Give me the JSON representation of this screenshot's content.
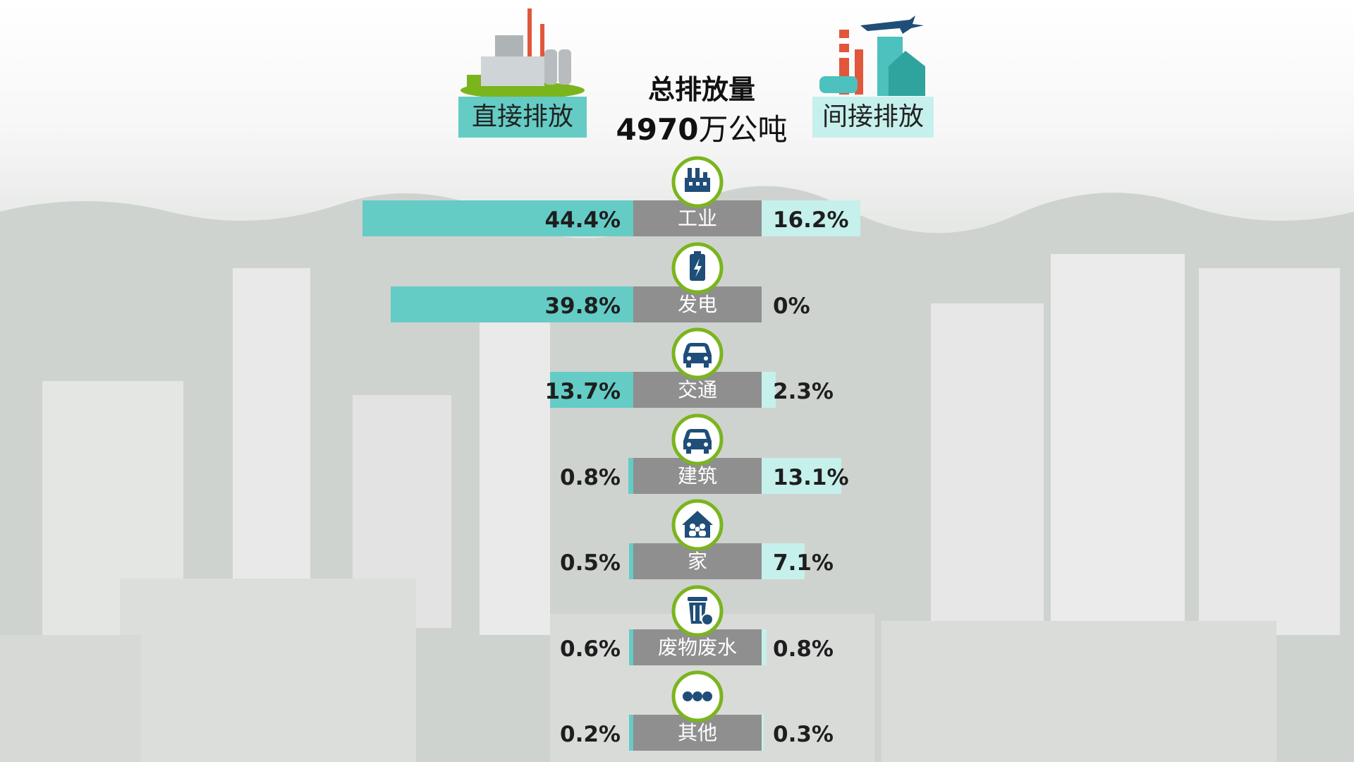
{
  "header": {
    "direct_label": "直接排放",
    "indirect_label": "间接排放",
    "total_title": "总排放量",
    "total_number": "4970",
    "total_unit": "万公吨"
  },
  "colors": {
    "direct": "#64ccc5",
    "indirect": "#c6f0ec",
    "center": "#8f8f8f",
    "icon_ring": "#7ab51d",
    "icon_fill": "#1f4e79"
  },
  "chart_data": {
    "type": "bar",
    "orientation": "horizontal-diverging",
    "unit": "%",
    "categories": [
      "工业",
      "发电",
      "交通",
      "建筑",
      "家",
      "废物废水",
      "其他"
    ],
    "category_icons": [
      "factory-icon",
      "battery-icon",
      "car-icon",
      "car-icon",
      "household-icon",
      "trash-icon",
      "more-icon"
    ],
    "series": [
      {
        "name": "直接排放",
        "side": "left",
        "values": [
          44.4,
          39.8,
          13.7,
          0.8,
          0.5,
          0.6,
          0.2
        ]
      },
      {
        "name": "间接排放",
        "side": "right",
        "values": [
          16.2,
          0,
          2.3,
          13.1,
          7.1,
          0.8,
          0.3
        ]
      }
    ],
    "labels_direct": [
      "44.4%",
      "39.8%",
      "13.7%",
      "0.8%",
      "0.5%",
      "0.6%",
      "0.2%"
    ],
    "labels_indirect": [
      "16.2%",
      "0%",
      "2.3%",
      "13.1%",
      "7.1%",
      "0.8%",
      "0.3%"
    ],
    "legend": "top"
  }
}
